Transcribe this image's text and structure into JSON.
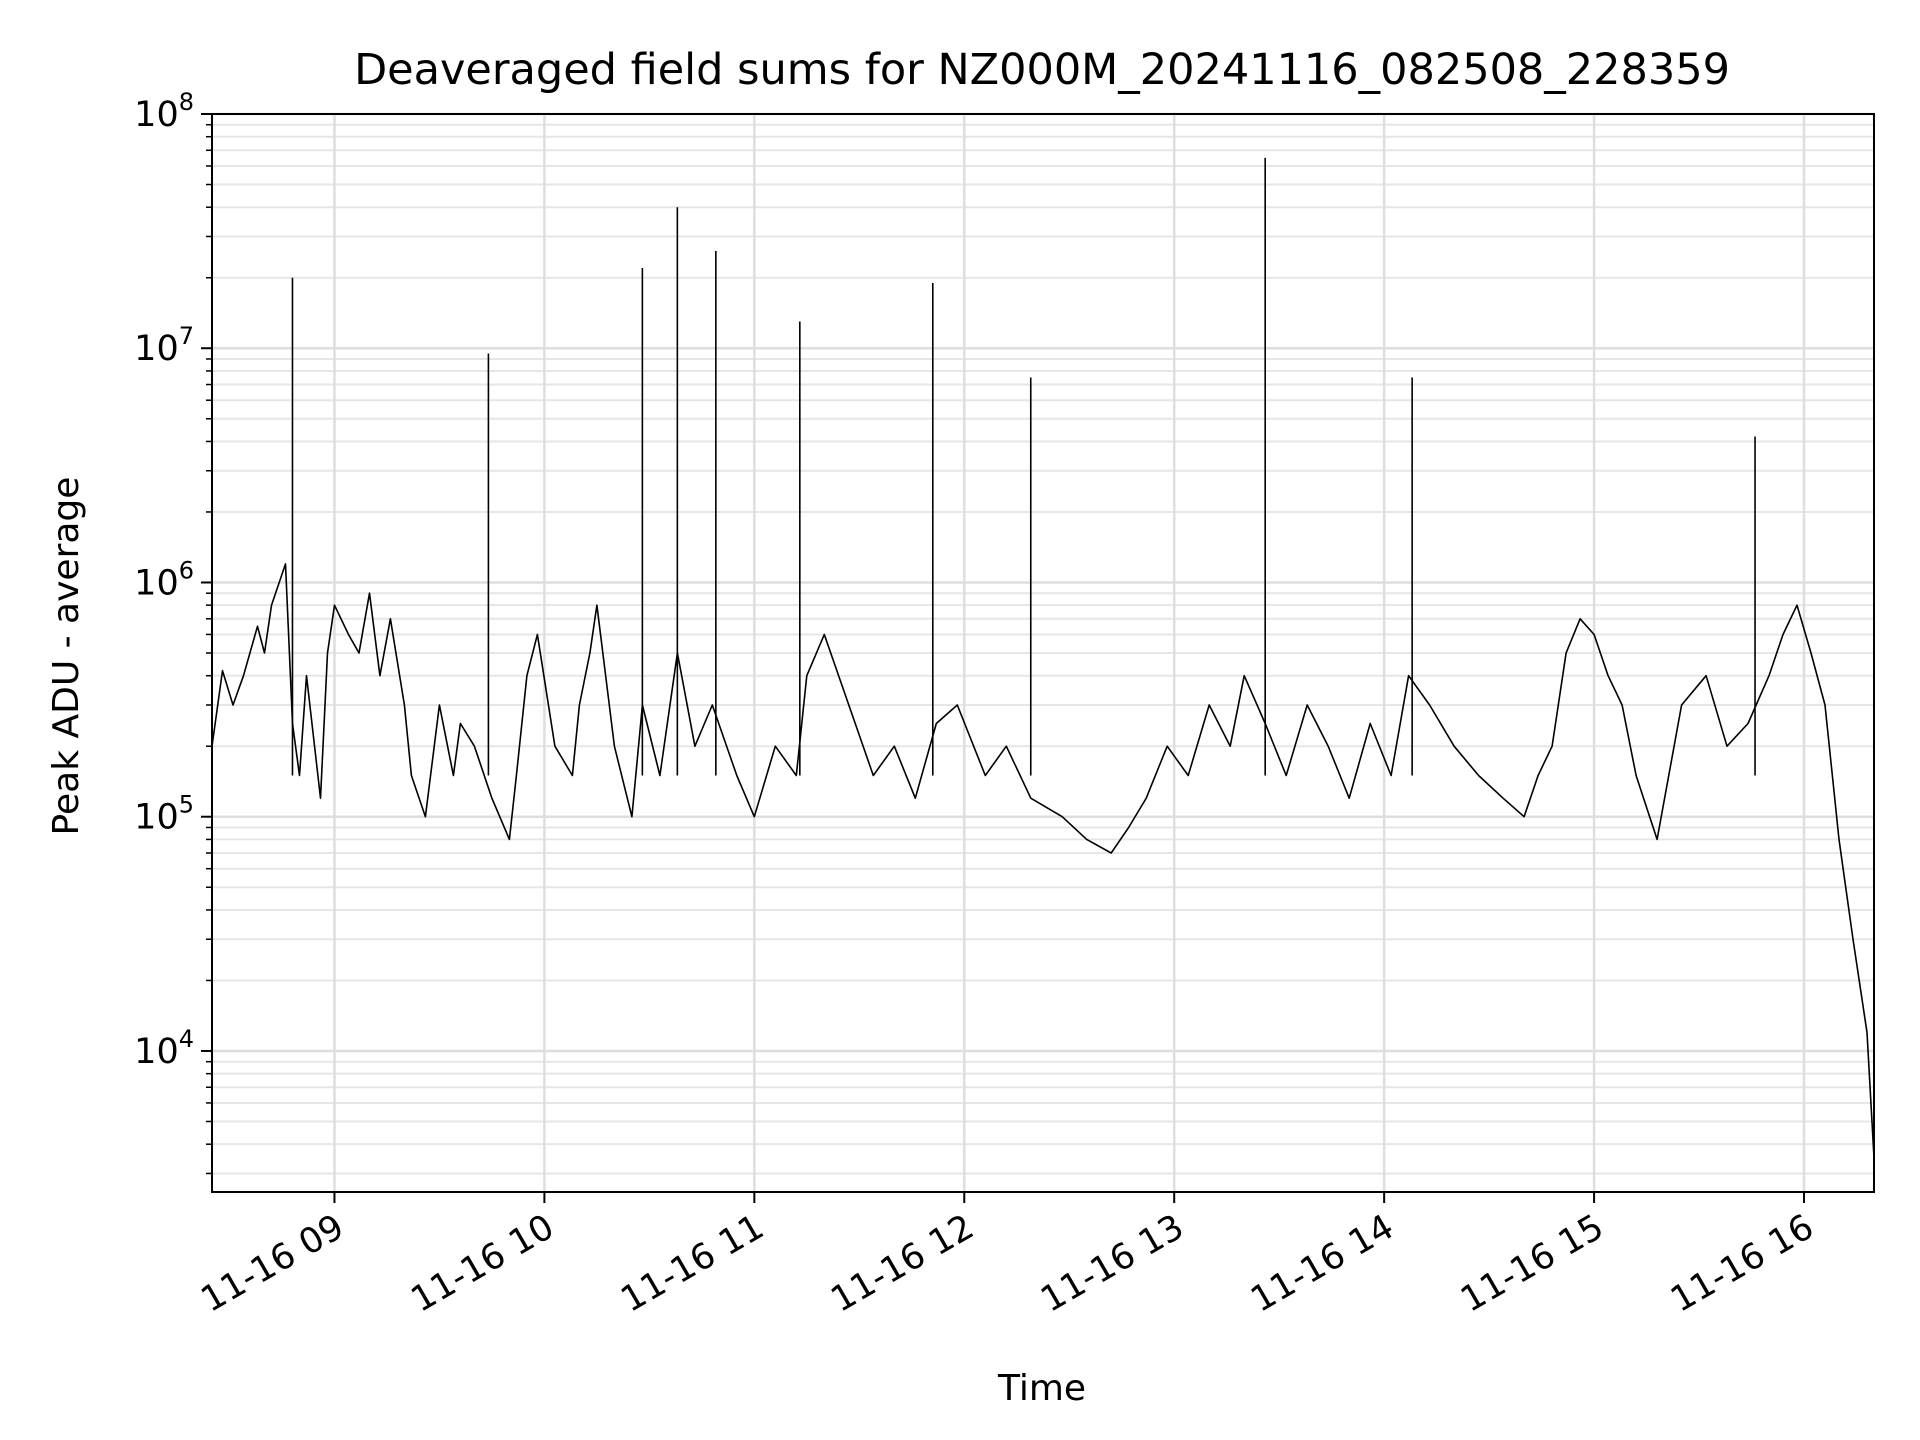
{
  "chart_data": {
    "type": "line",
    "title": "Deaveraged field sums for NZ000M_20241116_082508_228359",
    "xlabel": "Time",
    "ylabel": "Peak ADU - average",
    "yscale": "log",
    "xlim": [
      "2024-11-16 08:25",
      "2024-11-16 16:20"
    ],
    "ylim": [
      2500,
      100000000
    ],
    "grid": true,
    "line_color": "#000000",
    "x_ticks": [
      {
        "value": "2024-11-16 09:00",
        "label": "11-16 09"
      },
      {
        "value": "2024-11-16 10:00",
        "label": "11-16 10"
      },
      {
        "value": "2024-11-16 11:00",
        "label": "11-16 11"
      },
      {
        "value": "2024-11-16 12:00",
        "label": "11-16 12"
      },
      {
        "value": "2024-11-16 13:00",
        "label": "11-16 13"
      },
      {
        "value": "2024-11-16 14:00",
        "label": "11-16 14"
      },
      {
        "value": "2024-11-16 15:00",
        "label": "11-16 15"
      },
      {
        "value": "2024-11-16 16:00",
        "label": "11-16 16"
      }
    ],
    "y_ticks": [
      {
        "value": 10000,
        "base": "10",
        "exp": "4"
      },
      {
        "value": 100000,
        "base": "10",
        "exp": "5"
      },
      {
        "value": 1000000,
        "base": "10",
        "exp": "6"
      },
      {
        "value": 10000000,
        "base": "10",
        "exp": "7"
      },
      {
        "value": 100000000,
        "base": "10",
        "exp": "8"
      }
    ],
    "series": [
      {
        "x": [
          "2024-11-16 08:25",
          "2024-11-16 08:28",
          "2024-11-16 08:31",
          "2024-11-16 08:34",
          "2024-11-16 08:38",
          "2024-11-16 08:40",
          "2024-11-16 08:42",
          "2024-11-16 08:46",
          "2024-11-16 08:48",
          "2024-11-16 08:50",
          "2024-11-16 08:52",
          "2024-11-16 08:56",
          "2024-11-16 08:58",
          "2024-11-16 09:00",
          "2024-11-16 09:04",
          "2024-11-16 09:07",
          "2024-11-16 09:10",
          "2024-11-16 09:13",
          "2024-11-16 09:16",
          "2024-11-16 09:20",
          "2024-11-16 09:22",
          "2024-11-16 09:26",
          "2024-11-16 09:30",
          "2024-11-16 09:34",
          "2024-11-16 09:36",
          "2024-11-16 09:40",
          "2024-11-16 09:45",
          "2024-11-16 09:50",
          "2024-11-16 09:52",
          "2024-11-16 09:55",
          "2024-11-16 09:58",
          "2024-11-16 10:03",
          "2024-11-16 10:08",
          "2024-11-16 10:10",
          "2024-11-16 10:13",
          "2024-11-16 10:15",
          "2024-11-16 10:20",
          "2024-11-16 10:25",
          "2024-11-16 10:28",
          "2024-11-16 10:33",
          "2024-11-16 10:38",
          "2024-11-16 10:43",
          "2024-11-16 10:48",
          "2024-11-16 10:55",
          "2024-11-16 11:00",
          "2024-11-16 11:06",
          "2024-11-16 11:12",
          "2024-11-16 11:15",
          "2024-11-16 11:20",
          "2024-11-16 11:27",
          "2024-11-16 11:34",
          "2024-11-16 11:40",
          "2024-11-16 11:46",
          "2024-11-16 11:52",
          "2024-11-16 11:58",
          "2024-11-16 12:06",
          "2024-11-16 12:12",
          "2024-11-16 12:19",
          "2024-11-16 12:28",
          "2024-11-16 12:35",
          "2024-11-16 12:42",
          "2024-11-16 12:47",
          "2024-11-16 12:52",
          "2024-11-16 12:58",
          "2024-11-16 13:04",
          "2024-11-16 13:10",
          "2024-11-16 13:16",
          "2024-11-16 13:20",
          "2024-11-16 13:26",
          "2024-11-16 13:32",
          "2024-11-16 13:38",
          "2024-11-16 13:44",
          "2024-11-16 13:50",
          "2024-11-16 13:56",
          "2024-11-16 14:02",
          "2024-11-16 14:07",
          "2024-11-16 14:13",
          "2024-11-16 14:20",
          "2024-11-16 14:27",
          "2024-11-16 14:34",
          "2024-11-16 14:40",
          "2024-11-16 14:44",
          "2024-11-16 14:48",
          "2024-11-16 14:52",
          "2024-11-16 14:56",
          "2024-11-16 15:00",
          "2024-11-16 15:04",
          "2024-11-16 15:08",
          "2024-11-16 15:12",
          "2024-11-16 15:18",
          "2024-11-16 15:25",
          "2024-11-16 15:32",
          "2024-11-16 15:38",
          "2024-11-16 15:44",
          "2024-11-16 15:50",
          "2024-11-16 15:54",
          "2024-11-16 15:58",
          "2024-11-16 16:02",
          "2024-11-16 16:06",
          "2024-11-16 16:10",
          "2024-11-16 16:14",
          "2024-11-16 16:18",
          "2024-11-16 16:20"
        ],
        "y": [
          200000,
          420000,
          300000,
          400000,
          650000,
          500000,
          800000,
          1200000,
          250000,
          150000,
          400000,
          120000,
          500000,
          800000,
          600000,
          500000,
          900000,
          400000,
          700000,
          300000,
          150000,
          100000,
          300000,
          150000,
          250000,
          200000,
          120000,
          80000,
          150000,
          400000,
          600000,
          200000,
          150000,
          300000,
          500000,
          800000,
          200000,
          100000,
          300000,
          150000,
          500000,
          200000,
          300000,
          150000,
          100000,
          200000,
          150000,
          400000,
          600000,
          300000,
          150000,
          200000,
          120000,
          250000,
          300000,
          150000,
          200000,
          120000,
          100000,
          80000,
          70000,
          90000,
          120000,
          200000,
          150000,
          300000,
          200000,
          400000,
          250000,
          150000,
          300000,
          200000,
          120000,
          250000,
          150000,
          400000,
          300000,
          200000,
          150000,
          120000,
          100000,
          150000,
          200000,
          500000,
          700000,
          600000,
          400000,
          300000,
          150000,
          80000,
          300000,
          400000,
          200000,
          250000,
          400000,
          600000,
          800000,
          500000,
          300000,
          80000,
          30000,
          12000,
          3500
        ]
      }
    ],
    "spikes": [
      {
        "x": "2024-11-16 08:48",
        "y": 20000000
      },
      {
        "x": "2024-11-16 09:44",
        "y": 9500000
      },
      {
        "x": "2024-11-16 10:28",
        "y": 22000000
      },
      {
        "x": "2024-11-16 10:38",
        "y": 40000000
      },
      {
        "x": "2024-11-16 10:49",
        "y": 26000000
      },
      {
        "x": "2024-11-16 11:13",
        "y": 13000000
      },
      {
        "x": "2024-11-16 11:51",
        "y": 19000000
      },
      {
        "x": "2024-11-16 12:19",
        "y": 7500000
      },
      {
        "x": "2024-11-16 13:26",
        "y": 65000000
      },
      {
        "x": "2024-11-16 14:08",
        "y": 7500000
      },
      {
        "x": "2024-11-16 15:46",
        "y": 4200000
      }
    ]
  }
}
